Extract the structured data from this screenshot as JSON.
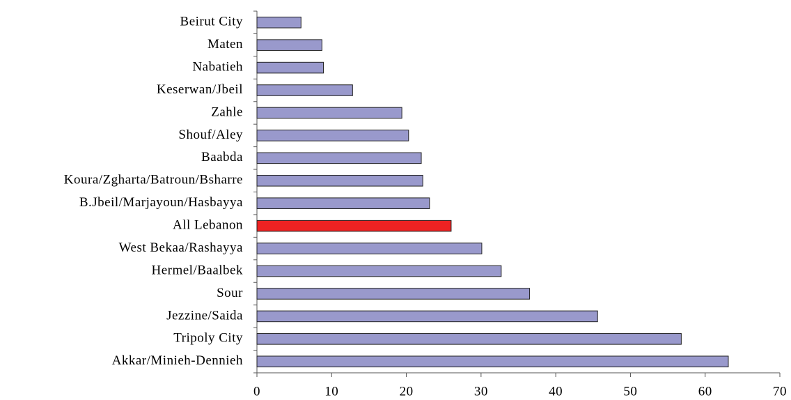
{
  "chart_data": {
    "type": "barh",
    "categories": [
      "Beirut City",
      "Maten",
      "Nabatieh",
      "Keserwan/Jbeil",
      "Zahle",
      "Shouf/Aley",
      "Baabda",
      "Koura/Zgharta/Batroun/Bsharre",
      "B.Jbeil/Marjayoun/Hasbayya",
      "All Lebanon",
      "West Bekaa/Rashayya",
      "Hermel/Baalbek",
      "Sour",
      "Jezzine/Saida",
      "Tripoly City",
      "Akkar/Minieh-Dennieh"
    ],
    "values": [
      5.9,
      8.7,
      8.9,
      12.8,
      19.4,
      20.3,
      22.0,
      22.2,
      23.1,
      26.0,
      30.1,
      32.7,
      36.5,
      45.6,
      56.8,
      63.1
    ],
    "colors": [
      "#9999cc",
      "#9999cc",
      "#9999cc",
      "#9999cc",
      "#9999cc",
      "#9999cc",
      "#9999cc",
      "#9999cc",
      "#9999cc",
      "#ee2222",
      "#9999cc",
      "#9999cc",
      "#9999cc",
      "#9999cc",
      "#9999cc",
      "#9999cc"
    ],
    "xlim": [
      0,
      70
    ],
    "xticks": [
      0,
      10,
      20,
      30,
      40,
      50,
      60,
      70
    ]
  }
}
